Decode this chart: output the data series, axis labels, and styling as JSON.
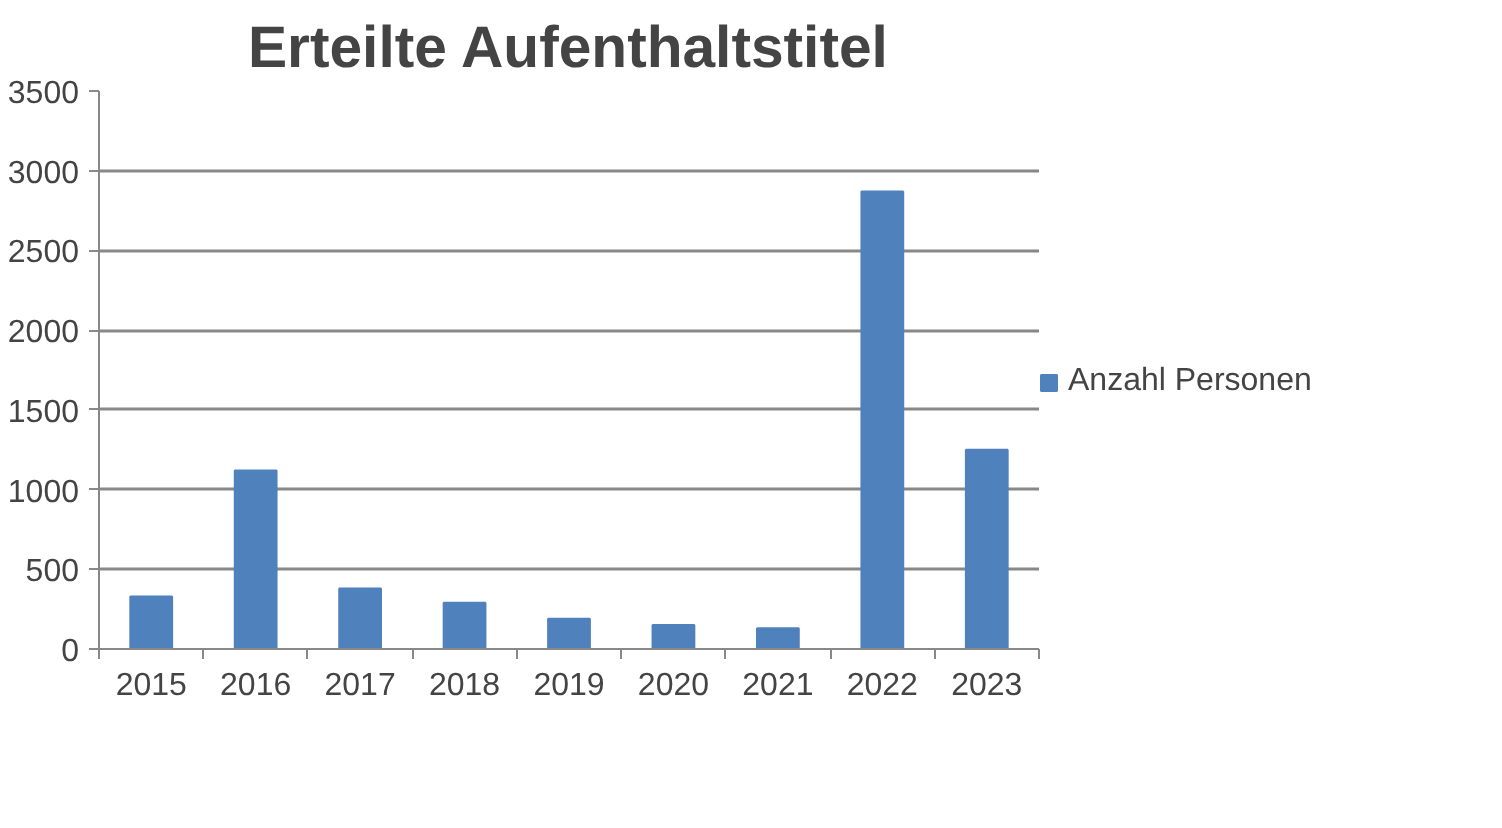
{
  "chart_data": {
    "type": "bar",
    "title": "Erteilte Aufenthaltstitel",
    "categories": [
      "2015",
      "2016",
      "2017",
      "2018",
      "2019",
      "2020",
      "2021",
      "2022",
      "2023"
    ],
    "series": [
      {
        "name": "Anzahl Personen",
        "color": "#4f81bd",
        "values": [
          330,
          1120,
          380,
          290,
          190,
          150,
          130,
          2870,
          1250
        ]
      }
    ],
    "ylim": [
      0,
      3500
    ],
    "yticks": [
      0,
      500,
      1000,
      1500,
      2000,
      2500,
      3000,
      3500
    ],
    "grid": "y",
    "legend": "right"
  }
}
